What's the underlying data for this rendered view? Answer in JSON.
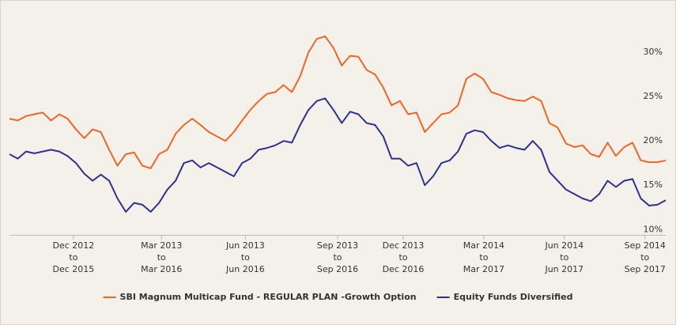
{
  "chart_data": {
    "type": "line",
    "xlim": [
      0,
      79
    ],
    "xticks": [
      {
        "value": 7.7,
        "label": [
          "Dec 2012",
          "to",
          "Dec 2015"
        ]
      },
      {
        "value": 18.3,
        "label": [
          "Mar 2013",
          "to",
          "Mar 2016"
        ]
      },
      {
        "value": 28.4,
        "label": [
          "Jun 2013",
          "to",
          "Jun 2016"
        ]
      },
      {
        "value": 39.5,
        "label": [
          "Sep 2013",
          "to",
          "Sep 2016"
        ]
      },
      {
        "value": 47.4,
        "label": [
          "Dec 2013",
          "to",
          "Dec 2016"
        ]
      },
      {
        "value": 57.1,
        "label": [
          "Mar 2014",
          "to",
          "Mar 2017"
        ]
      },
      {
        "value": 66.8,
        "label": [
          "Jun 2014",
          "to",
          "Jun 2017"
        ]
      },
      {
        "value": 76.5,
        "label": [
          "Sep 2014",
          "to",
          "Sep 2017"
        ]
      }
    ],
    "ylim": [
      9.4,
      35
    ],
    "yticks": [
      {
        "value": 10,
        "label": "10%"
      },
      {
        "value": 15,
        "label": "15%"
      },
      {
        "value": 20,
        "label": "20%"
      },
      {
        "value": 25,
        "label": "25%"
      },
      {
        "value": 30,
        "label": "30%"
      }
    ],
    "grid": false,
    "legend": "bottom",
    "series": [
      {
        "name": "SBI Magnum Multicap Fund - REGULAR PLAN -Growth Option",
        "color": "#f26522",
        "values": [
          22.5,
          22.3,
          22.8,
          23.0,
          23.2,
          22.3,
          23.0,
          22.5,
          21.3,
          20.3,
          21.3,
          21.0,
          19.0,
          17.2,
          18.5,
          18.7,
          17.2,
          16.9,
          18.5,
          19.0,
          20.8,
          21.8,
          22.5,
          21.8,
          21.0,
          20.5,
          20.0,
          21.0,
          22.3,
          23.5,
          24.5,
          25.3,
          25.5,
          26.3,
          25.5,
          27.3,
          30.0,
          31.5,
          31.8,
          30.5,
          28.5,
          29.6,
          29.5,
          28.0,
          27.5,
          26.0,
          24.0,
          24.5,
          23.0,
          23.2,
          21.0,
          22.0,
          23.0,
          23.2,
          24.0,
          27.0,
          27.6,
          27.0,
          25.5,
          25.2,
          24.8,
          24.6,
          24.5,
          25.0,
          24.5,
          22.0,
          21.5,
          19.7,
          19.3,
          19.5,
          18.5,
          18.2,
          19.8,
          18.3,
          19.3,
          19.8,
          17.8,
          17.6,
          17.6,
          17.8
        ]
      },
      {
        "name": "Equity Funds Diversified",
        "color": "#2e3192",
        "values": [
          18.5,
          18.0,
          18.8,
          18.6,
          18.8,
          19.0,
          18.8,
          18.3,
          17.5,
          16.3,
          15.5,
          16.2,
          15.5,
          13.5,
          12.0,
          13.0,
          12.8,
          12.0,
          13.0,
          14.5,
          15.5,
          17.5,
          17.8,
          17.0,
          17.5,
          17.0,
          16.5,
          16.0,
          17.5,
          18.0,
          19.0,
          19.2,
          19.5,
          20.0,
          19.8,
          21.8,
          23.5,
          24.5,
          24.8,
          23.5,
          22.0,
          23.3,
          23.0,
          22.0,
          21.8,
          20.5,
          18.0,
          18.0,
          17.2,
          17.5,
          15.0,
          16.0,
          17.5,
          17.8,
          18.8,
          20.8,
          21.2,
          21.0,
          20.0,
          19.2,
          19.5,
          19.2,
          19.0,
          20.0,
          19.0,
          16.5,
          15.5,
          14.5,
          14.0,
          13.5,
          13.2,
          14.0,
          15.5,
          14.8,
          15.5,
          15.7,
          13.5,
          12.7,
          12.8,
          13.3
        ]
      }
    ]
  }
}
